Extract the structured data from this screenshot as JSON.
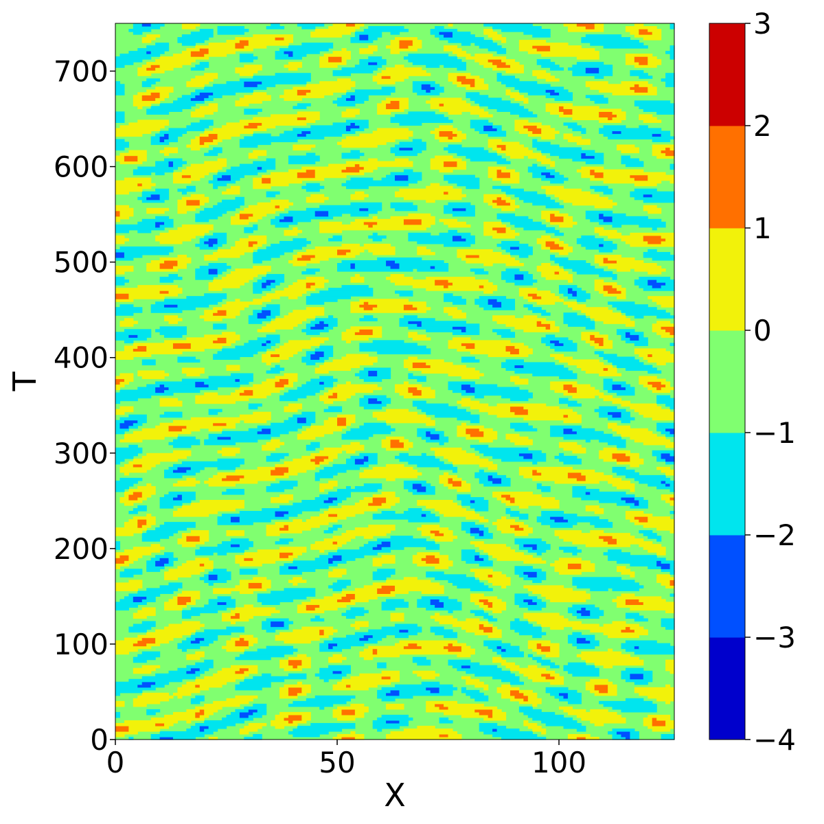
{
  "chart_data": {
    "type": "heatmap",
    "subtype": "filled-contour",
    "title": "",
    "xlabel": "X",
    "ylabel": "T",
    "xlim": [
      0,
      126
    ],
    "ylim": [
      0,
      750
    ],
    "x_ticks": [
      0,
      50,
      100
    ],
    "x_tick_labels": [
      "0",
      "50",
      "100"
    ],
    "y_ticks": [
      0,
      100,
      200,
      300,
      400,
      500,
      600,
      700
    ],
    "y_tick_labels": [
      "0",
      "100",
      "200",
      "300",
      "400",
      "500",
      "600",
      "700"
    ],
    "colormap": "jet",
    "colorbar": {
      "levels": [
        -4,
        -3,
        -2,
        -1,
        0,
        1,
        2,
        3
      ],
      "tick_labels": [
        "−4",
        "−3",
        "−2",
        "−1",
        "0",
        "1",
        "2",
        "3"
      ],
      "band_colors": [
        "#0000cc",
        "#0050ff",
        "#00e5ee",
        "#80ff70",
        "#f2f20a",
        "#ff7000",
        "#cc0000"
      ]
    },
    "pattern": "spatiotemporally chaotic traveling stripes; stripes tilt toward the right edge on the right half and toward the left edge on the left half, with a central region near X approximately 55-75",
    "grid": false
  }
}
